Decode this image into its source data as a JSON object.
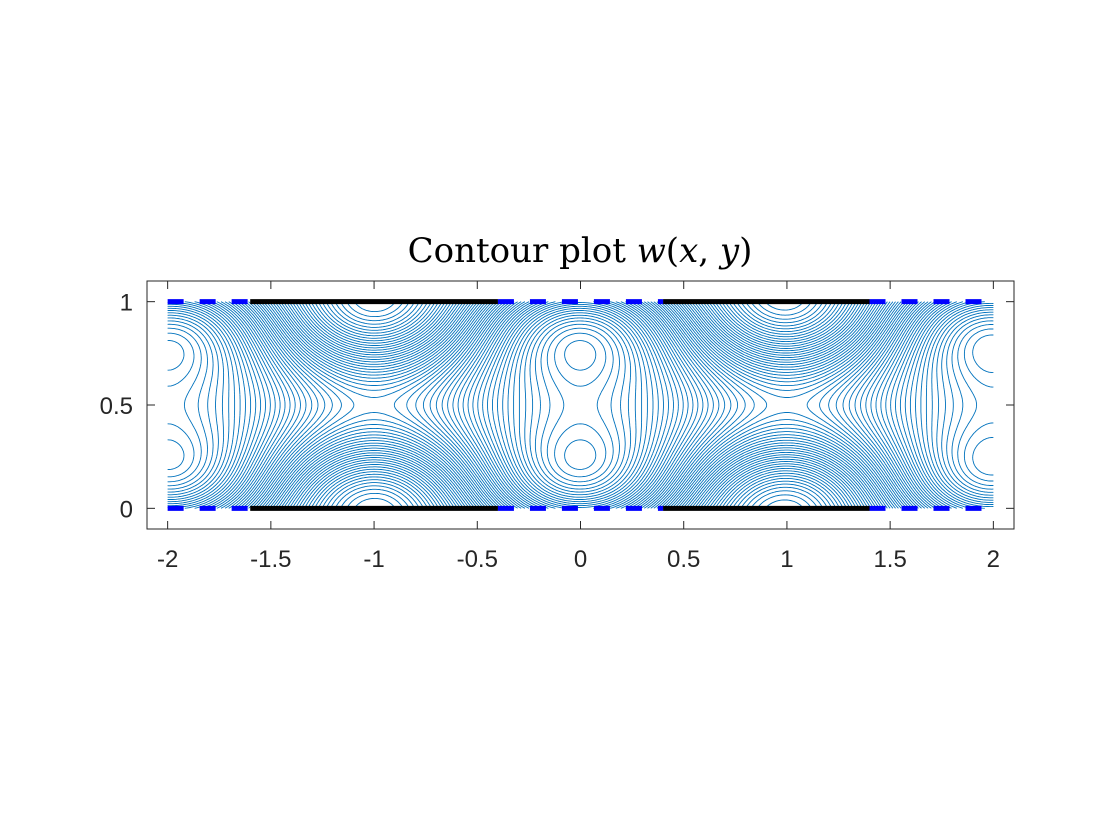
{
  "chart_data": {
    "type": "contour",
    "title": {
      "prefix": "Contour plot ",
      "func": "w",
      "open": "(",
      "var1": "x",
      "sep": ", ",
      "var2": "y",
      "close": ")"
    },
    "xlabel": "",
    "ylabel": "",
    "xlim": [
      -2,
      2
    ],
    "ylim": [
      0,
      1
    ],
    "axes_box_xlim": [
      -2.1,
      2.1
    ],
    "axes_box_ylim": [
      -0.1,
      1.1
    ],
    "x_ticks": [
      -2,
      -1.5,
      -1,
      -0.5,
      0,
      0.5,
      1,
      1.5,
      2
    ],
    "x_tick_labels": [
      "-2",
      "-1.5",
      "-1",
      "-0.5",
      "0",
      "0.5",
      "1",
      "1.5",
      "2"
    ],
    "y_ticks": [
      0,
      0.5,
      1
    ],
    "y_tick_labels": [
      "0",
      "0.5",
      "1"
    ],
    "grid": false,
    "contour_color": "#0072BD",
    "contour_levels": 60,
    "boundary_segments": {
      "solid_color": "#000000",
      "solid_intervals": [
        [
          -1.6,
          -0.4
        ],
        [
          0.4,
          1.4
        ]
      ],
      "dashed_color": "#0000FF",
      "dashed_intervals": [
        [
          -2,
          -1.6
        ],
        [
          -0.4,
          0.4
        ],
        [
          1.4,
          2
        ]
      ],
      "y_positions": [
        0,
        1
      ]
    }
  }
}
